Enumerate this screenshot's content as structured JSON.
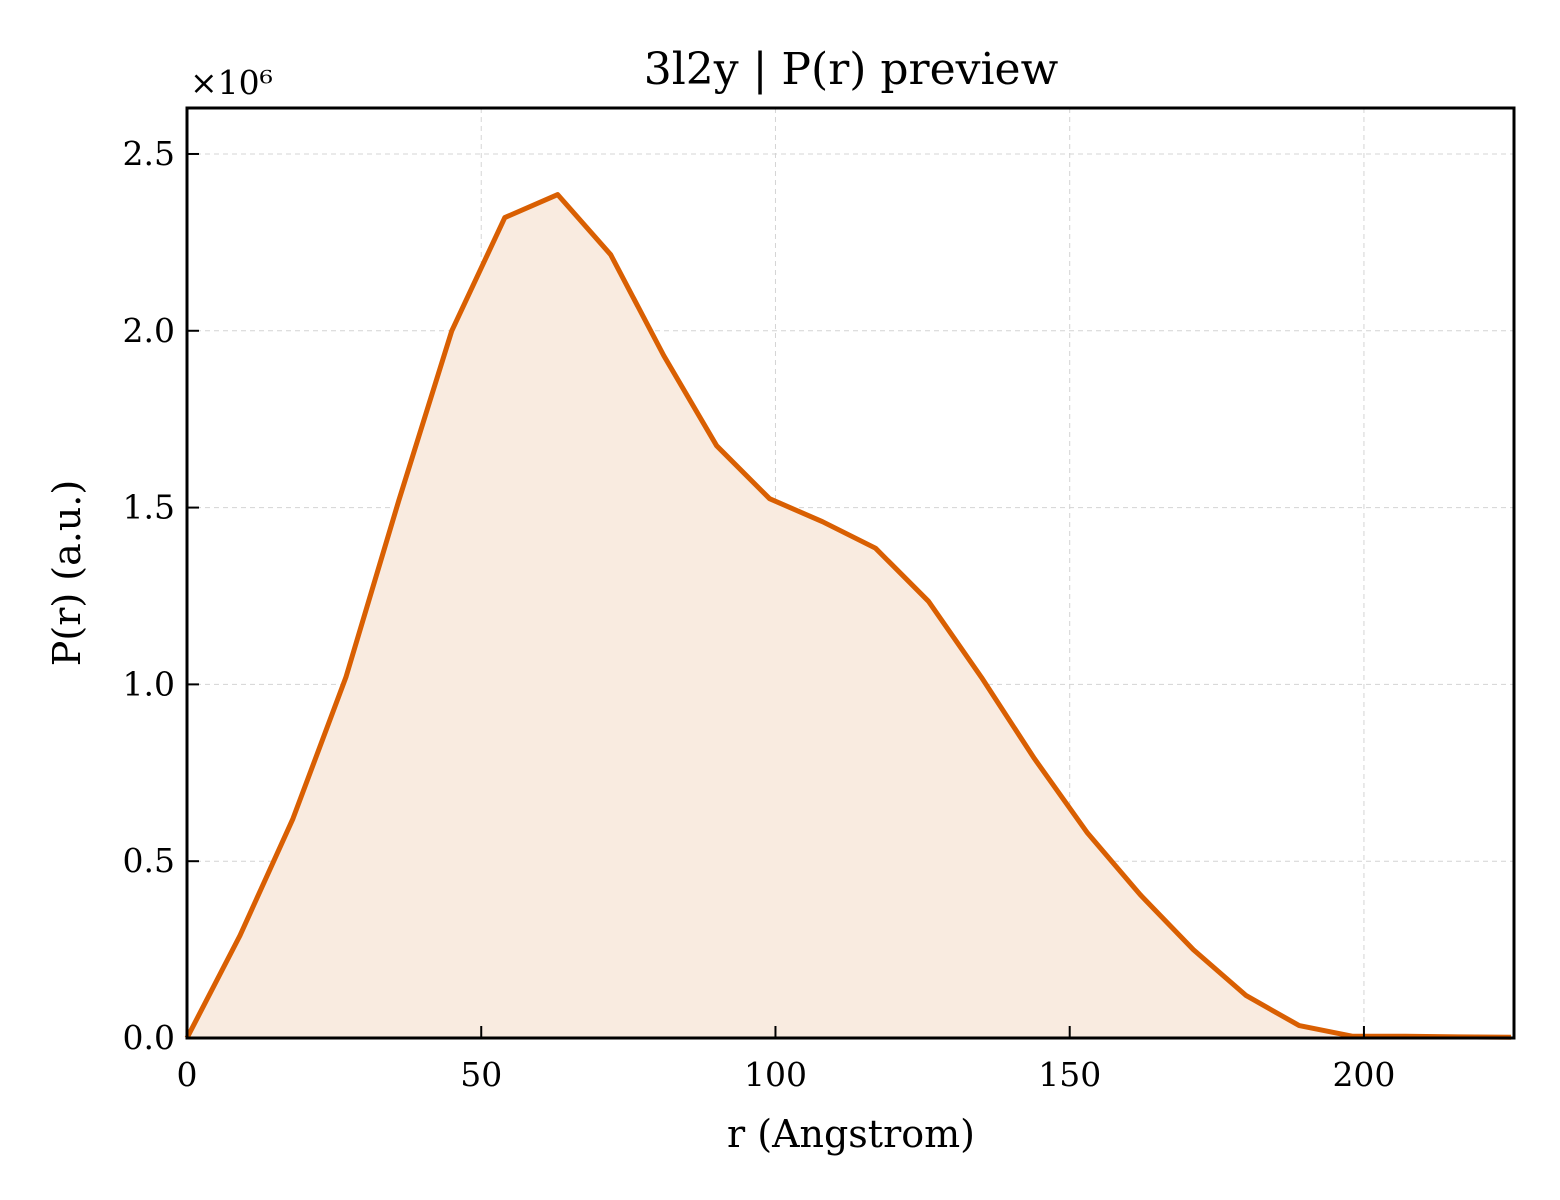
{
  "chart_data": {
    "type": "area",
    "title": "3l2y | P(r) preview",
    "xlabel": "r (Angstrom)",
    "ylabel": "P(r) (a.u.)",
    "y_scale_label": "×10⁶",
    "y_multiplier": 1000000,
    "xlim": [
      0,
      225.5
    ],
    "ylim": [
      0,
      2.63
    ],
    "x_ticks": [
      0,
      50,
      100,
      150,
      200
    ],
    "x_tick_labels": [
      "0",
      "50",
      "100",
      "150",
      "200"
    ],
    "y_ticks": [
      0,
      0.5,
      1.0,
      1.5,
      2.0,
      2.5
    ],
    "y_tick_labels": [
      "0.0",
      "0.5",
      "1.0",
      "1.5",
      "2.0",
      "2.5"
    ],
    "grid": true,
    "legend": "none",
    "line_color": "#d95f02",
    "fill_color": "#f9ebe0",
    "series": [
      {
        "x": [
          0,
          9,
          18,
          27,
          36,
          45,
          54,
          63,
          72,
          81,
          90,
          99,
          108,
          117,
          126,
          135,
          144,
          153,
          162,
          171,
          180,
          189,
          198,
          207,
          216,
          225
        ],
        "y": [
          0.0,
          0.29,
          0.62,
          1.02,
          1.52,
          2.0,
          2.32,
          2.385,
          2.215,
          1.93,
          1.675,
          1.525,
          1.46,
          1.385,
          1.235,
          1.02,
          0.79,
          0.58,
          0.405,
          0.25,
          0.12,
          0.035,
          0.005,
          0.005,
          0.003,
          0.002
        ]
      }
    ]
  }
}
